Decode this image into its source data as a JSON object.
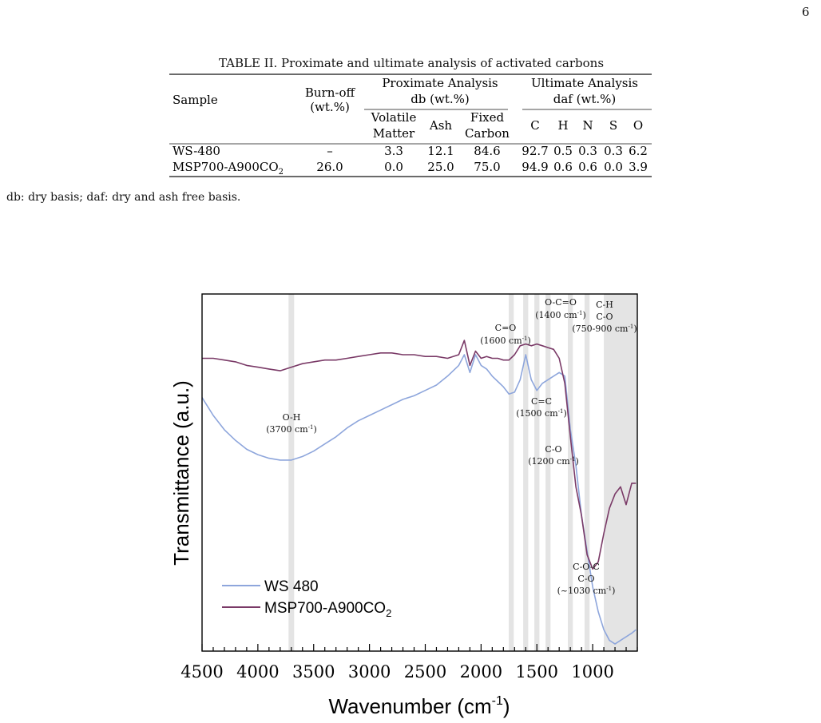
{
  "page_number": "6",
  "table": {
    "caption": "TABLE II. Proximate and ultimate analysis of activated carbons",
    "headers": {
      "sample": "Sample",
      "burnoff_1": "Burn-off",
      "burnoff_2": "(wt.%)",
      "proximate_1": "Proximate Analysis",
      "proximate_2": "db (wt.%)",
      "ultimate_1": "Ultimate Analysis",
      "ultimate_2": "daf (wt.%)",
      "volatile_1": "Volatile",
      "volatile_2": "Matter",
      "ash": "Ash",
      "fixed_1": "Fixed",
      "fixed_2": "Carbon",
      "c": "C",
      "h": "H",
      "n": "N",
      "s": "S",
      "o": "O"
    },
    "rows": [
      {
        "sample": "WS-480",
        "burnoff": "–",
        "volatile": "3.3",
        "ash": "12.1",
        "fixed": "84.6",
        "c": "92.7",
        "h": "0.5",
        "n": "0.3",
        "s": "0.3",
        "o": "6.2"
      },
      {
        "sample_main": "MSP700-A900CO",
        "sample_sub": "2",
        "burnoff": "26.0",
        "volatile": "0.0",
        "ash": "25.0",
        "fixed": "75.0",
        "c": "94.9",
        "h": "0.6",
        "n": "0.6",
        "s": "0.0",
        "o": "3.9"
      }
    ],
    "footnote": "db: dry basis; daf: dry and ash free basis."
  },
  "chart_data": {
    "type": "line",
    "xlabel_main": "Wavenumber (cm",
    "xlabel_sup": "-1",
    "xlabel_end": ")",
    "ylabel": "Transmittance (a.u.)",
    "xlim": [
      4500,
      600
    ],
    "x_reversed": true,
    "ylim": [
      0,
      1
    ],
    "x_ticks": [
      4500,
      4000,
      3500,
      3000,
      2500,
      2000,
      1500,
      1000
    ],
    "legend_position": "bottom-left",
    "series": [
      {
        "name": "WS 480",
        "color": "#8ea6dc",
        "x": [
          4500,
          4400,
          4300,
          4200,
          4100,
          4000,
          3900,
          3800,
          3700,
          3600,
          3500,
          3400,
          3300,
          3200,
          3100,
          3000,
          2900,
          2800,
          2700,
          2600,
          2500,
          2400,
          2300,
          2200,
          2150,
          2100,
          2050,
          2000,
          1950,
          1900,
          1850,
          1800,
          1750,
          1700,
          1650,
          1600,
          1550,
          1500,
          1450,
          1400,
          1350,
          1300,
          1250,
          1200,
          1150,
          1100,
          1050,
          1000,
          950,
          900,
          850,
          800,
          750,
          700,
          650,
          612
        ],
        "y": [
          0.71,
          0.66,
          0.62,
          0.59,
          0.565,
          0.55,
          0.54,
          0.535,
          0.535,
          0.545,
          0.56,
          0.58,
          0.6,
          0.625,
          0.645,
          0.66,
          0.675,
          0.69,
          0.705,
          0.715,
          0.73,
          0.745,
          0.77,
          0.8,
          0.83,
          0.78,
          0.83,
          0.8,
          0.79,
          0.77,
          0.755,
          0.74,
          0.72,
          0.725,
          0.76,
          0.83,
          0.76,
          0.73,
          0.75,
          0.76,
          0.77,
          0.78,
          0.77,
          0.62,
          0.52,
          0.38,
          0.28,
          0.18,
          0.11,
          0.06,
          0.03,
          0.02,
          0.03,
          0.04,
          0.05,
          0.06
        ]
      },
      {
        "name": "MSP700-A900CO2",
        "color": "#7a3a67",
        "x": [
          4500,
          4400,
          4300,
          4200,
          4100,
          4000,
          3900,
          3800,
          3700,
          3600,
          3500,
          3400,
          3300,
          3200,
          3100,
          3000,
          2900,
          2800,
          2700,
          2600,
          2500,
          2400,
          2300,
          2200,
          2150,
          2100,
          2050,
          2000,
          1950,
          1900,
          1850,
          1800,
          1750,
          1700,
          1650,
          1600,
          1550,
          1500,
          1450,
          1400,
          1350,
          1300,
          1250,
          1200,
          1150,
          1100,
          1050,
          1000,
          950,
          900,
          850,
          800,
          750,
          700,
          650,
          612
        ],
        "y": [
          0.82,
          0.82,
          0.815,
          0.81,
          0.8,
          0.795,
          0.79,
          0.785,
          0.795,
          0.805,
          0.81,
          0.815,
          0.815,
          0.82,
          0.825,
          0.83,
          0.835,
          0.835,
          0.83,
          0.83,
          0.825,
          0.825,
          0.82,
          0.83,
          0.87,
          0.8,
          0.84,
          0.82,
          0.825,
          0.82,
          0.82,
          0.815,
          0.815,
          0.83,
          0.855,
          0.86,
          0.855,
          0.86,
          0.855,
          0.85,
          0.845,
          0.82,
          0.75,
          0.6,
          0.46,
          0.38,
          0.27,
          0.23,
          0.25,
          0.33,
          0.4,
          0.44,
          0.46,
          0.41,
          0.47,
          0.47
        ]
      }
    ],
    "bands": [
      {
        "center": 3700,
        "width": 50
      },
      {
        "center": 1730,
        "width": 45
      },
      {
        "center": 1600,
        "width": 45
      },
      {
        "center": 1500,
        "width": 45
      },
      {
        "center": 1400,
        "width": 45
      },
      {
        "center": 1200,
        "width": 45
      },
      {
        "center": 1050,
        "width": 45
      },
      {
        "wmin": 600,
        "wmax": 900
      }
    ],
    "annotations": [
      {
        "id": "oh",
        "lines": [
          "O-H",
          "(3700 cm",
          "-1",
          ")"
        ]
      },
      {
        "id": "co1600",
        "lines": [
          "C=O",
          "(1600 cm",
          "-1",
          ")"
        ]
      },
      {
        "id": "oco",
        "lines": [
          "O-C=O",
          "(1400 cm",
          "-1",
          ")"
        ]
      },
      {
        "id": "ch",
        "lines": [
          "C-H",
          "C-O",
          "(750-900 cm",
          "-1",
          ")"
        ]
      },
      {
        "id": "cc",
        "lines": [
          "C=C",
          "(1500 cm",
          "-1",
          ")"
        ]
      },
      {
        "id": "co1200",
        "lines": [
          "C-O",
          "(1200 cm",
          "-1",
          ")"
        ]
      },
      {
        "id": "coc",
        "lines": [
          "C-O-C",
          "C-O",
          "(~1030 cm",
          "-1",
          ")"
        ]
      }
    ]
  }
}
